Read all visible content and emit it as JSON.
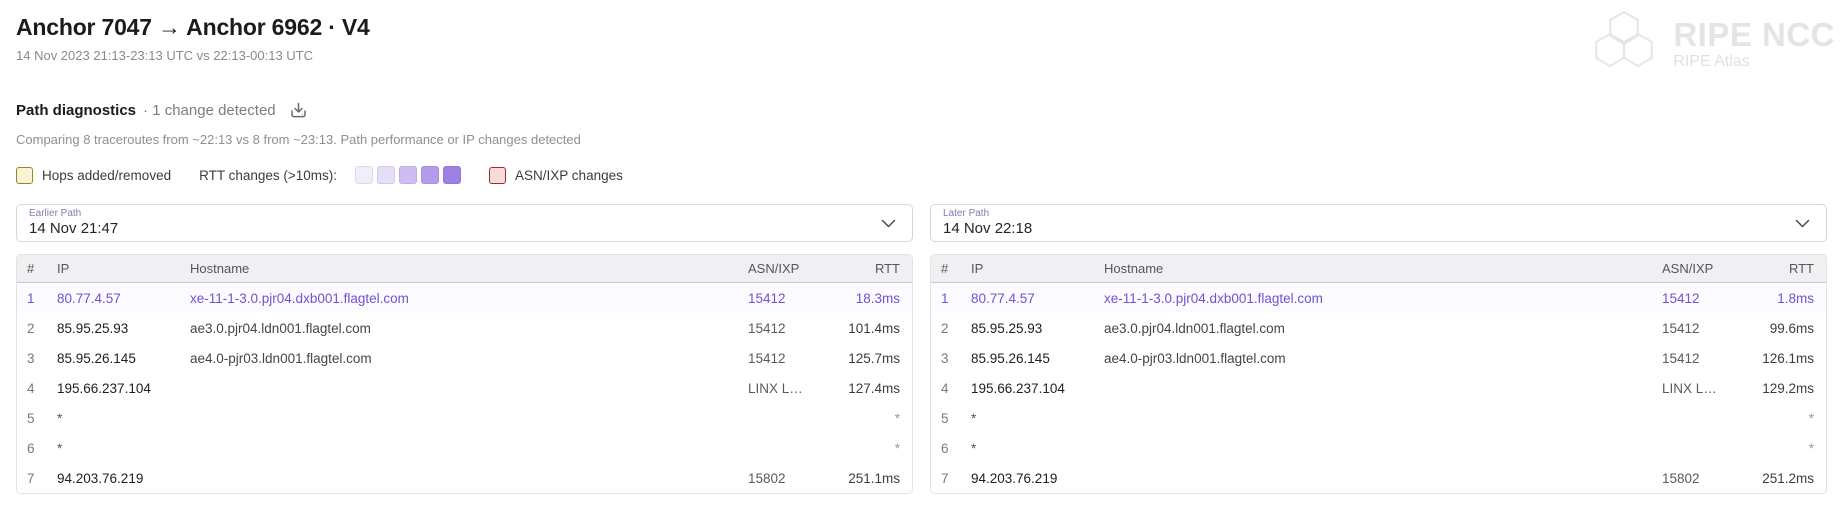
{
  "header": {
    "title": "Anchor 7047 → Anchor 6962 · V4",
    "subtitle": "14 Nov 2023 21:13-23:13 UTC vs 22:13-00:13 UTC"
  },
  "logo": {
    "brand": "RIPE NCC",
    "product": "RIPE Atlas"
  },
  "diagnostics": {
    "title": "Path diagnostics",
    "status": "· 1 change detected",
    "summary": "Comparing 8 traceroutes from ~22:13 vs 8 from ~23:13. Path performance or IP changes detected"
  },
  "legend": {
    "hops": {
      "label": "Hops added/removed",
      "fill": "#faf3d6",
      "border": "#9c8226"
    },
    "rtt": {
      "label": "RTT changes (>10ms):",
      "colors": [
        "#f1edfb",
        "#e6ddf8",
        "#cebdf1",
        "#b59ce9",
        "#9e7fe3"
      ]
    },
    "asn": {
      "label": "ASN/IXP changes",
      "fill": "#f6dbdb",
      "border": "#9c2b2b"
    }
  },
  "accent_color": "#7352cc",
  "table": {
    "columns": [
      "#",
      "IP",
      "Hostname",
      "ASN/IXP",
      "RTT"
    ]
  },
  "panels": [
    {
      "label": "Earlier Path",
      "value": "14 Nov 21:47",
      "rows": [
        {
          "n": "1",
          "ip": "80.77.4.57",
          "host": "xe-11-1-3.0.pjr04.dxb001.flagtel.com",
          "asn": "15412",
          "rtt": "18.3ms",
          "highlight": true
        },
        {
          "n": "2",
          "ip": "85.95.25.93",
          "host": "ae3.0.pjr04.ldn001.flagtel.com",
          "asn": "15412",
          "rtt": "101.4ms"
        },
        {
          "n": "3",
          "ip": "85.95.26.145",
          "host": "ae4.0-pjr03.ldn001.flagtel.com",
          "asn": "15412",
          "rtt": "125.7ms"
        },
        {
          "n": "4",
          "ip": "195.66.237.104",
          "host": "",
          "asn": "LINX L…",
          "rtt": "127.4ms"
        },
        {
          "n": "5",
          "ip": "*",
          "host": "",
          "asn": "",
          "rtt": "*"
        },
        {
          "n": "6",
          "ip": "*",
          "host": "",
          "asn": "",
          "rtt": "*"
        },
        {
          "n": "7",
          "ip": "94.203.76.219",
          "host": "",
          "asn": "15802",
          "rtt": "251.1ms"
        }
      ]
    },
    {
      "label": "Later Path",
      "value": "14 Nov 22:18",
      "rows": [
        {
          "n": "1",
          "ip": "80.77.4.57",
          "host": "xe-11-1-3.0.pjr04.dxb001.flagtel.com",
          "asn": "15412",
          "rtt": "1.8ms",
          "highlight": true
        },
        {
          "n": "2",
          "ip": "85.95.25.93",
          "host": "ae3.0.pjr04.ldn001.flagtel.com",
          "asn": "15412",
          "rtt": "99.6ms"
        },
        {
          "n": "3",
          "ip": "85.95.26.145",
          "host": "ae4.0-pjr03.ldn001.flagtel.com",
          "asn": "15412",
          "rtt": "126.1ms"
        },
        {
          "n": "4",
          "ip": "195.66.237.104",
          "host": "",
          "asn": "LINX L…",
          "rtt": "129.2ms"
        },
        {
          "n": "5",
          "ip": "*",
          "host": "",
          "asn": "",
          "rtt": "*"
        },
        {
          "n": "6",
          "ip": "*",
          "host": "",
          "asn": "",
          "rtt": "*"
        },
        {
          "n": "7",
          "ip": "94.203.76.219",
          "host": "",
          "asn": "15802",
          "rtt": "251.2ms"
        }
      ]
    }
  ]
}
